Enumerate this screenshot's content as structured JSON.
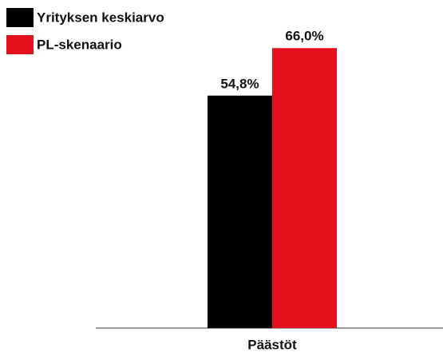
{
  "chart_data": {
    "type": "bar",
    "categories": [
      "Päästöt"
    ],
    "series": [
      {
        "name": "Yrityksen keskiarvo",
        "color": "#000000",
        "values": [
          54.8
        ],
        "value_labels": [
          "54,8%"
        ]
      },
      {
        "name": "PL-skenaario",
        "color": "#e3101e",
        "values": [
          66.0
        ],
        "value_labels": [
          "66,0%"
        ]
      }
    ],
    "ylim": [
      0,
      70
    ],
    "legend": "top-left"
  }
}
